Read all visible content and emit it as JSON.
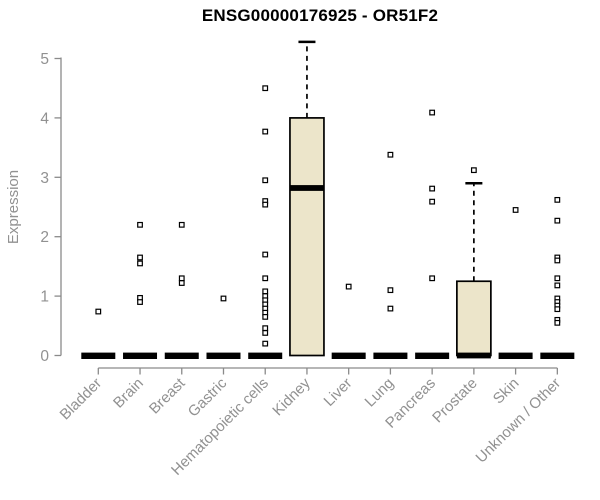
{
  "chart_data": {
    "type": "boxplot",
    "title": "ENSG00000176925 - OR51F2",
    "ylabel": "Expression",
    "xlabel": "",
    "ylim": [
      0,
      5.4
    ],
    "yticks": [
      0,
      1,
      2,
      3,
      4,
      5
    ],
    "grid": false,
    "legend": "none",
    "categories": [
      "Bladder",
      "Brain",
      "Breast",
      "Gastric",
      "Hematopoietic cells",
      "Kidney",
      "Liver",
      "Lung",
      "Pancreas",
      "Prostate",
      "Skin",
      "Unknown / Other"
    ],
    "colors": {
      "box_fill": "#ece5ca",
      "box_stroke": "#000000",
      "median": "#000000",
      "axis": "#8a8a8a",
      "tick_label": "#919191",
      "outlier_stroke": "#000000",
      "background": "#ffffff",
      "title": "#000000"
    },
    "series": [
      {
        "label": "Bladder",
        "whisker_low": 0,
        "q1": 0,
        "median": 0,
        "q3": 0,
        "whisker_high": 0,
        "outliers": [
          0.74
        ]
      },
      {
        "label": "Brain",
        "whisker_low": 0,
        "q1": 0,
        "median": 0,
        "q3": 0,
        "whisker_high": 0,
        "outliers": [
          2.2,
          1.65,
          1.55,
          0.97,
          0.9
        ]
      },
      {
        "label": "Breast",
        "whisker_low": 0,
        "q1": 0,
        "median": 0,
        "q3": 0,
        "whisker_high": 0,
        "outliers": [
          2.2,
          1.3,
          1.22
        ]
      },
      {
        "label": "Gastric",
        "whisker_low": 0,
        "q1": 0,
        "median": 0,
        "q3": 0,
        "whisker_high": 0,
        "outliers": [
          0.96
        ]
      },
      {
        "label": "Hematopoietic cells",
        "whisker_low": 0,
        "q1": 0,
        "median": 0,
        "q3": 0,
        "whisker_high": 0,
        "outliers": [
          4.5,
          3.77,
          2.95,
          2.6,
          2.54,
          1.7,
          1.3,
          1.08,
          1.0,
          0.93,
          0.86,
          0.79,
          0.72,
          0.65,
          0.46,
          0.38,
          0.2
        ]
      },
      {
        "label": "Kidney",
        "whisker_low": 0,
        "q1": 0,
        "median": 2.82,
        "q3": 4.0,
        "whisker_high": 5.28,
        "outliers": []
      },
      {
        "label": "Liver",
        "whisker_low": 0,
        "q1": 0,
        "median": 0,
        "q3": 0,
        "whisker_high": 0,
        "outliers": [
          1.16
        ]
      },
      {
        "label": "Lung",
        "whisker_low": 0,
        "q1": 0,
        "median": 0,
        "q3": 0,
        "whisker_high": 0,
        "outliers": [
          3.38,
          1.1,
          0.79
        ]
      },
      {
        "label": "Pancreas",
        "whisker_low": 0,
        "q1": 0,
        "median": 0,
        "q3": 0,
        "whisker_high": 0,
        "outliers": [
          4.09,
          2.81,
          2.59,
          1.3
        ]
      },
      {
        "label": "Prostate",
        "whisker_low": 0,
        "q1": 0,
        "median": 0,
        "q3": 1.25,
        "whisker_high": 2.9,
        "outliers": [
          3.12
        ]
      },
      {
        "label": "Skin",
        "whisker_low": 0,
        "q1": 0,
        "median": 0,
        "q3": 0,
        "whisker_high": 0,
        "outliers": [
          2.45
        ]
      },
      {
        "label": "Unknown / Other",
        "whisker_low": 0,
        "q1": 0,
        "median": 0,
        "q3": 0,
        "whisker_high": 0,
        "outliers": [
          2.62,
          2.27,
          1.65,
          1.6,
          1.3,
          1.18,
          0.96,
          0.9,
          0.84,
          0.78,
          0.6,
          0.55
        ]
      }
    ]
  }
}
